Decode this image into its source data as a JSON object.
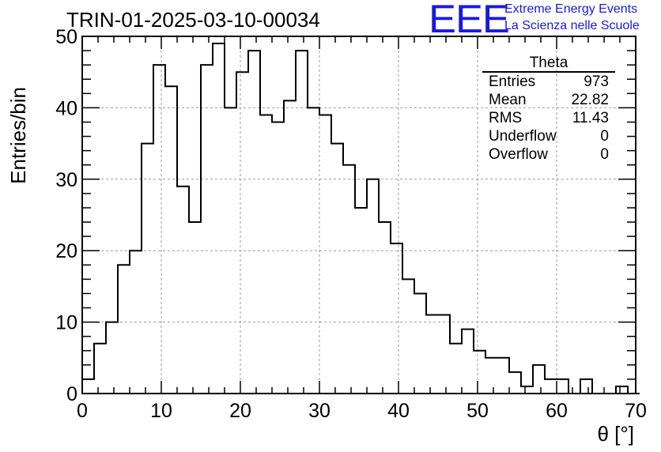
{
  "chart_data": {
    "type": "histogram",
    "title": "TRIN-01-2025-03-10-00034",
    "xlabel": "θ [°]",
    "ylabel": "Entries/bin",
    "xlim": [
      0,
      70
    ],
    "ylim": [
      0,
      50
    ],
    "bin_width": 1.5,
    "x_start": 0,
    "x_ticks": [
      0,
      10,
      20,
      30,
      40,
      50,
      60,
      70
    ],
    "y_ticks": [
      0,
      10,
      20,
      30,
      40,
      50
    ],
    "values": [
      2,
      7,
      10,
      18,
      20,
      35,
      46,
      43,
      29,
      24,
      46,
      49,
      40,
      45,
      48,
      39,
      38,
      41,
      48,
      40,
      39,
      35,
      32,
      26,
      30,
      24,
      21,
      16,
      14,
      11,
      11,
      7,
      9,
      6,
      5,
      5,
      3,
      1,
      4,
      2,
      2,
      0,
      2,
      0,
      0,
      1,
      0
    ],
    "grid": true,
    "stats_box": {
      "title": "Theta",
      "rows": [
        {
          "label": "Entries",
          "value": "973"
        },
        {
          "label": "Mean",
          "value": "22.82"
        },
        {
          "label": "RMS",
          "value": "11.43"
        },
        {
          "label": "Underflow",
          "value": "0"
        },
        {
          "label": "Overflow",
          "value": "0"
        }
      ]
    }
  },
  "logo": {
    "mark": "EEE",
    "line1": "Extreme Energy Events",
    "line2": "La Scienza nelle Scuole"
  },
  "colors": {
    "line": "#000000",
    "grid": "#999999",
    "logo": "#1818e6"
  }
}
